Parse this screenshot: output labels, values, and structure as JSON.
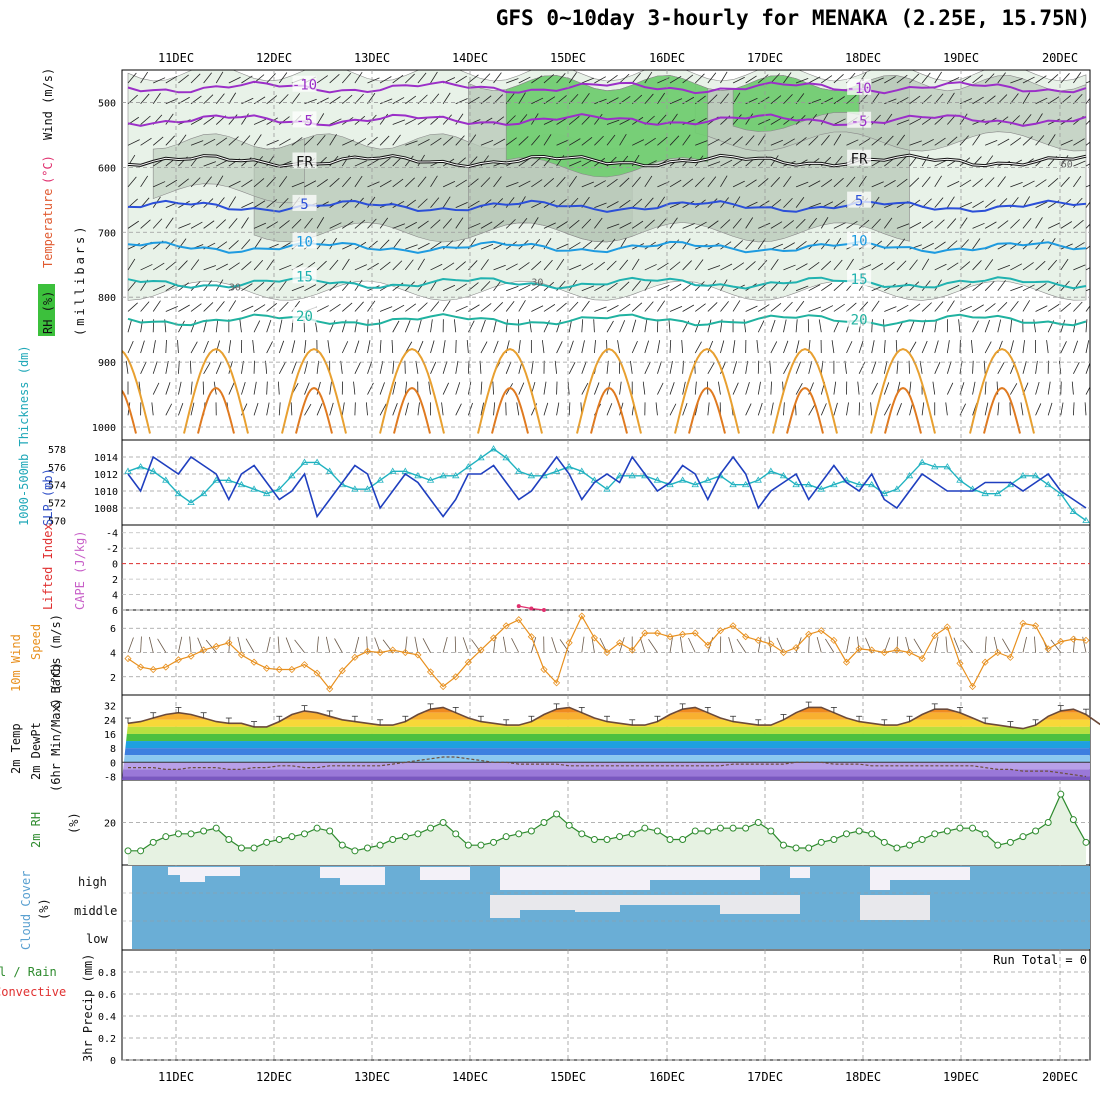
{
  "title": "GFS 0~10day 3-hourly for MENAKA (2.25E, 15.75N)",
  "run_total": "Run Total = 0",
  "colors": {
    "temp_line": "#1f3fbf",
    "slp": "#1f3fbf",
    "thickness": "#20b2c0",
    "cape": "#e0306e",
    "wind_speed": "#e8901e",
    "dewpoint": "#6c4f3f",
    "rh": "#2e8b2e",
    "cloud": "#6aaed6",
    "rh_green": "#6fce6f",
    "rh_grey": "#b9c9b9",
    "rh_light": "#e8f2e8"
  },
  "chart_data": [
    {
      "panel": "upper-air",
      "type": "line",
      "title": "Temperature (°C) Wind (m/s) RH (%)",
      "ylabel": "millibars",
      "y_ticks": [
        "500",
        "600",
        "700",
        "800",
        "900",
        "1000"
      ],
      "ylim": [
        450,
        1020
      ],
      "x_categories": [
        "11DEC",
        "12DEC",
        "13DEC",
        "14DEC",
        "15DEC",
        "16DEC",
        "17DEC",
        "18DEC",
        "19DEC",
        "20DEC"
      ],
      "isotherms": [
        {
          "label": "-10",
          "level": 477,
          "color": "#9b2fc8",
          "label_at": [
            "-10",
            "-10"
          ]
        },
        {
          "label": "-5",
          "level": 527,
          "color": "#9b2fc8",
          "label_at": [
            "-5",
            "-5"
          ]
        },
        {
          "label": "FR",
          "level": 590,
          "color": "#111111",
          "label_at": [
            "FR",
            "FR"
          ]
        },
        {
          "label": "5",
          "level": 660,
          "color": "#2b4fd8",
          "label_at": [
            "5",
            "5"
          ]
        },
        {
          "label": "10",
          "level": 723,
          "color": "#1e9be0",
          "label_at": [
            "10",
            "10"
          ]
        },
        {
          "label": "15",
          "level": 778,
          "color": "#20b2b0",
          "label_at": [
            "15",
            "15"
          ]
        },
        {
          "label": "20",
          "level": 835,
          "color": "#20b2a0",
          "label_at": [
            "20",
            "20"
          ]
        }
      ],
      "rh_labels": [
        "30",
        "30",
        "30",
        "60"
      ]
    },
    {
      "panel": "slp-thickness",
      "type": "line",
      "ylabel_left": "1000-500mb Thickness (dm)",
      "ylabel_right": "SLP (mb)",
      "thickness_ticks": [
        "578",
        "576",
        "574",
        "572",
        "570"
      ],
      "slp_ticks": [
        "1014",
        "1012",
        "1010",
        "1008"
      ],
      "slp": [
        1012,
        1010,
        1014,
        1013,
        1012,
        1014,
        1013,
        1012,
        1009,
        1012,
        1013,
        1011,
        1009,
        1010,
        1012,
        1007,
        1009,
        1011,
        1013,
        1012,
        1008,
        1010,
        1012,
        1011,
        1009,
        1007,
        1009,
        1012,
        1012,
        1013,
        1011,
        1009,
        1010,
        1012,
        1014,
        1012,
        1009,
        1011,
        1012,
        1011,
        1014,
        1012,
        1010,
        1011,
        1013,
        1012,
        1009,
        1012,
        1014,
        1012,
        1008,
        1010,
        1011,
        1012,
        1009,
        1011,
        1013,
        1011,
        1010,
        1012,
        1009,
        1008,
        1010,
        1012,
        1011,
        1010,
        1010,
        1010,
        1011,
        1011,
        1011,
        1010,
        1011,
        1012,
        1010,
        1009,
        1008
      ],
      "thickness": [
        575.5,
        576,
        575.5,
        574.5,
        573,
        572,
        573,
        574.5,
        574.5,
        574,
        573.5,
        573,
        573.5,
        575,
        576.5,
        576.5,
        575.5,
        574,
        573.5,
        573.5,
        574.5,
        575.5,
        575.5,
        575,
        574.5,
        575,
        575,
        576,
        577,
        578,
        577,
        575.5,
        575,
        575,
        575.5,
        576,
        575.5,
        574.5,
        573.5,
        575,
        575,
        575,
        574.5,
        574,
        574.5,
        574,
        574.5,
        575,
        574,
        574,
        574.5,
        575.5,
        575,
        574,
        574,
        573.5,
        574,
        574.5,
        574,
        574,
        573,
        573.5,
        575,
        576.5,
        576,
        576,
        574.5,
        573.5,
        573,
        573,
        574,
        575,
        575,
        574,
        573,
        571,
        570
      ]
    },
    {
      "panel": "cape-lifted-index",
      "type": "line",
      "ylabel_left": "Lifted Index",
      "ylabel_right": "CAPE (J/kg)",
      "y_ticks": [
        "-4",
        "-2",
        "0",
        "2",
        "4",
        "6"
      ],
      "ylim": [
        -5,
        6
      ],
      "cape_points": [
        {
          "t": 31,
          "v": 5.5
        },
        {
          "t": 32,
          "v": 5.8
        },
        {
          "t": 33,
          "v": 6.0
        }
      ]
    },
    {
      "panel": "10m-wind",
      "type": "line",
      "ylabel": "10m Wind Speed & Barbs (m/s)",
      "y_ticks": [
        "2",
        "4",
        "6"
      ],
      "ylim": [
        0.5,
        7.5
      ],
      "values": [
        3.5,
        2.8,
        2.6,
        2.8,
        3.4,
        3.7,
        4.2,
        4.5,
        4.8,
        3.8,
        3.2,
        2.7,
        2.6,
        2.6,
        3.0,
        2.3,
        1.0,
        2.5,
        3.6,
        4.1,
        4.0,
        4.2,
        4.0,
        3.8,
        2.4,
        1.2,
        2.0,
        3.2,
        4.2,
        5.2,
        6.2,
        6.7,
        5.3,
        2.6,
        1.5,
        4.8,
        7.0,
        5.2,
        4.0,
        4.8,
        4.2,
        5.6,
        5.6,
        5.3,
        5.5,
        5.6,
        4.6,
        5.8,
        6.2,
        5.3,
        5.0,
        4.7,
        4.0,
        4.4,
        5.5,
        5.8,
        5.0,
        3.2,
        4.3,
        4.2,
        4.0,
        4.2,
        4.0,
        3.5,
        5.4,
        6.1,
        3.1,
        1.2,
        3.2,
        4.0,
        3.6,
        6.4,
        6.2,
        4.3,
        4.9,
        5.1,
        5.0
      ]
    },
    {
      "panel": "2m-temp",
      "type": "area",
      "ylabel": "2m Temp 2m DewPt (6hr Min/Max) (°C)",
      "y_ticks": [
        "32",
        "24",
        "16",
        "8",
        "0",
        "-8"
      ],
      "ylim": [
        -10,
        38
      ],
      "temp": [
        22,
        23,
        25,
        27,
        28,
        27,
        25,
        23,
        22,
        22,
        20,
        20,
        23,
        27,
        29,
        28,
        26,
        24,
        23,
        22,
        21,
        21,
        23,
        27,
        30,
        31,
        28,
        25,
        23,
        22,
        21,
        21,
        23,
        27,
        30,
        31,
        28,
        25,
        23,
        22,
        21,
        21,
        23,
        27,
        30,
        31,
        28,
        25,
        23,
        22,
        21,
        21,
        24,
        28,
        31,
        31,
        28,
        25,
        23,
        22,
        21,
        21,
        23,
        27,
        30,
        30,
        28,
        25,
        22,
        21,
        20,
        19,
        21,
        26,
        29,
        30,
        27,
        22,
        17
      ],
      "dewpoint": [
        -3,
        -3,
        -3,
        -4,
        -4,
        -3,
        -3,
        -3,
        -4,
        -4,
        -3,
        -3,
        -2,
        -2,
        -3,
        -3,
        -2,
        -2,
        -2,
        -2,
        -2,
        -1,
        0,
        1,
        2,
        3,
        3,
        2,
        1,
        0,
        0,
        -1,
        -1,
        -1,
        -1,
        -2,
        -2,
        -2,
        -2,
        -2,
        -2,
        -2,
        -2,
        -2,
        -2,
        -2,
        -2,
        -2,
        -1,
        -1,
        -1,
        -1,
        -1,
        0,
        0,
        0,
        -1,
        -1,
        -1,
        -2,
        -2,
        -2,
        -2,
        -2,
        -2,
        -2,
        -2,
        -2,
        -3,
        -4,
        -4,
        -5,
        -5,
        -5,
        -6,
        -7,
        -8
      ]
    },
    {
      "panel": "2m-rh",
      "type": "line",
      "ylabel": "2m RH (%)",
      "y_ticks": [
        "20"
      ],
      "ylim": [
        5,
        35
      ],
      "values": [
        10,
        10,
        13,
        15,
        16,
        16,
        17,
        18,
        14,
        11,
        11,
        13,
        14,
        15,
        16,
        18,
        17,
        12,
        10,
        11,
        12,
        14,
        15,
        16,
        18,
        20,
        16,
        12,
        12,
        13,
        15,
        16,
        17,
        20,
        23,
        19,
        16,
        14,
        14,
        15,
        16,
        18,
        17,
        14,
        14,
        17,
        17,
        18,
        18,
        18,
        20,
        17,
        12,
        11,
        11,
        13,
        14,
        16,
        17,
        16,
        13,
        11,
        12,
        14,
        16,
        17,
        18,
        18,
        16,
        12,
        13,
        15,
        17,
        20,
        30,
        21,
        13
      ]
    },
    {
      "panel": "cloud-cover",
      "type": "area",
      "ylabel": "Cloud Cover (%)",
      "levels": [
        "high",
        "middle",
        "low"
      ]
    },
    {
      "panel": "precip",
      "type": "bar",
      "ylabel": "3hr Precip (mm)",
      "legend": [
        "Total / Rain",
        "Convective"
      ],
      "y_ticks": [
        "0",
        "0.2",
        "0.4",
        "0.6",
        "0.8"
      ],
      "ylim": [
        0,
        1
      ],
      "values": []
    }
  ],
  "axis_labels": {
    "upper_rh": "RH (%)",
    "upper_temp": "Temperature",
    "upper_temp_unit": "(°C)",
    "upper_wind": "Wind (m/s)",
    "upper_mb": "(millibars)",
    "thickness": "1000-500mb Thickness (dm)",
    "slp": "SLP (mb)",
    "lifted": "Lifted Index",
    "cape": "CAPE (J/kg)",
    "wind10_a": "10m Wind",
    "wind10_b": "Speed",
    "wind10_c": "& Barbs (m/s)",
    "t2_a": "2m Temp",
    "t2_b": "2m DewPt",
    "t2_c": "(6hr Min/Max) (°C)",
    "rh2_a": "2m RH",
    "rh2_b": "(%)",
    "cloud_a": "Cloud Cover",
    "cloud_b": "(%)",
    "cloud_high": "high",
    "cloud_mid": "middle",
    "cloud_low": "low",
    "precip_a": "Total / Rain",
    "precip_b": "Convective",
    "precip_c": "3hr Precip (mm)"
  }
}
